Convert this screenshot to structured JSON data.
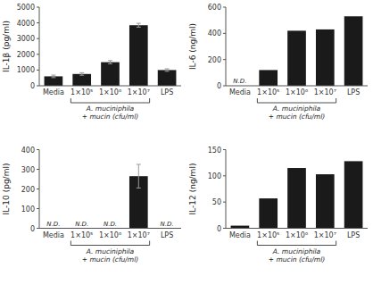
{
  "chart_data": [
    {
      "type": "bar",
      "ylabel": "IL-1β (pg/ml)",
      "categories": [
        "Media",
        "1×10⁵",
        "1×10⁶",
        "1×10⁷",
        "LPS"
      ],
      "values": [
        600,
        750,
        1500,
        3850,
        1000
      ],
      "errors": [
        80,
        80,
        100,
        120,
        80
      ],
      "color": "#1a1a1a",
      "ylim": [
        0,
        5000
      ],
      "yticks": [
        0,
        1000,
        2000,
        3000,
        4000,
        5000
      ],
      "grid": false,
      "annotations": [],
      "bracket": {
        "text": "A. muciniphila\n+ mucin (cfu/ml)",
        "from": "1×10⁵",
        "to": "1×10⁷"
      }
    },
    {
      "type": "bar",
      "ylabel": "IL-6 (ng/ml)",
      "categories": [
        "Media",
        "1×10⁵",
        "1×10⁶",
        "1×10⁷",
        "LPS"
      ],
      "values": [
        0,
        120,
        420,
        430,
        530
      ],
      "color": "#1a1a1a",
      "ylim": [
        0,
        600
      ],
      "yticks": [
        0,
        200,
        400,
        600
      ],
      "grid": false,
      "annotations": [
        {
          "text": "N.D.",
          "category": "Media"
        }
      ],
      "bracket": {
        "text": "A. muciniphila\n+ mucin (cfu/ml)",
        "from": "1×10⁵",
        "to": "1×10⁷"
      }
    },
    {
      "type": "bar",
      "ylabel": "IL-10 (pg/ml)",
      "categories": [
        "Media",
        "1×10⁵",
        "1×10⁶",
        "1×10⁷",
        "LPS"
      ],
      "values": [
        0,
        0,
        0,
        265,
        0
      ],
      "errors": [
        null,
        null,
        null,
        60,
        null
      ],
      "color": "#1a1a1a",
      "ylim": [
        0,
        400
      ],
      "yticks": [
        0,
        100,
        200,
        300,
        400
      ],
      "grid": false,
      "annotations": [
        {
          "text": "N.D.",
          "category": "Media"
        },
        {
          "text": "N.D.",
          "category": "1×10⁵"
        },
        {
          "text": "N.D.",
          "category": "1×10⁶"
        },
        {
          "text": "N.D.",
          "category": "LPS"
        }
      ],
      "bracket": {
        "text": "A. muciniphila\n+ mucin (cfu/ml)",
        "from": "1×10⁵",
        "to": "1×10⁷"
      }
    },
    {
      "type": "bar",
      "ylabel": "IL-12 (ng/ml)",
      "categories": [
        "Media",
        "1×10⁵",
        "1×10⁶",
        "1×10⁷",
        "LPS"
      ],
      "values": [
        5,
        57,
        115,
        103,
        128
      ],
      "color": "#1a1a1a",
      "ylim": [
        0,
        150
      ],
      "yticks": [
        0,
        50,
        100,
        150
      ],
      "grid": false,
      "annotations": [],
      "bracket": {
        "text": "A. muciniphila\n+ mucin (cfu/ml)",
        "from": "1×10⁵",
        "to": "1×10⁷"
      }
    }
  ]
}
